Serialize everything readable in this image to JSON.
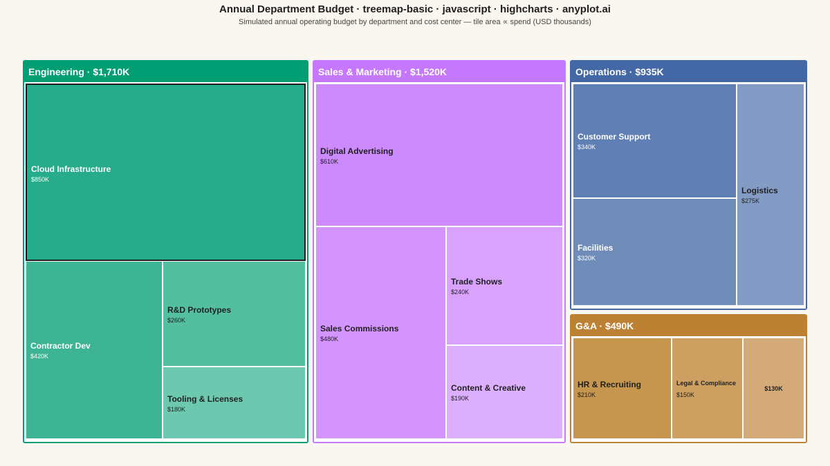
{
  "header": {
    "title": "Annual Department Budget · treemap-basic · javascript · highcharts · anyplot.ai",
    "subtitle": "Simulated annual operating budget by department and cost center — tile area ∝ spend (USD thousands)"
  },
  "chart_data": {
    "type": "treemap",
    "title": "Annual Department Budget · treemap-basic · javascript · highcharts · anyplot.ai",
    "subtitle": "Simulated annual operating budget by department and cost center — tile area ∝ spend (USD thousands)",
    "units": "USD thousands",
    "groups": [
      {
        "name": "Engineering",
        "header": "Engineering · $1,710K",
        "total": 1710,
        "color": "#009e73",
        "children": [
          {
            "name": "Cloud Infrastructure",
            "value": 850,
            "value_label": "$850K",
            "color": "#26ac8a"
          },
          {
            "name": "Contractor Dev",
            "value": 420,
            "value_label": "$420K",
            "color": "#3db595"
          },
          {
            "name": "R&D Prototypes",
            "value": 260,
            "value_label": "$260K",
            "color": "#53bf9f"
          },
          {
            "name": "Tooling & Licenses",
            "value": 180,
            "value_label": "$180K",
            "color": "#6cc8ae"
          }
        ]
      },
      {
        "name": "Sales & Marketing",
        "header": "Sales & Marketing · $1,520K",
        "total": 1520,
        "color": "#c678fd",
        "children": [
          {
            "name": "Digital Advertising",
            "value": 610,
            "value_label": "$610K",
            "color": "#cc8afd"
          },
          {
            "name": "Sales Commissions",
            "value": 480,
            "value_label": "$480K",
            "color": "#d395fd"
          },
          {
            "name": "Trade Shows",
            "value": 240,
            "value_label": "$240K",
            "color": "#d8a2fe"
          },
          {
            "name": "Content & Creative",
            "value": 190,
            "value_label": "$190K",
            "color": "#dcb0fe"
          }
        ]
      },
      {
        "name": "Operations",
        "header": "Operations · $935K",
        "total": 935,
        "color": "#4467a6",
        "children": [
          {
            "name": "Customer Support",
            "value": 340,
            "value_label": "$340K",
            "color": "#5f7fb5"
          },
          {
            "name": "Facilities",
            "value": 320,
            "value_label": "$320K",
            "color": "#708dba"
          },
          {
            "name": "Logistics",
            "value": 275,
            "value_label": "$275K",
            "color": "#839cc5"
          }
        ]
      },
      {
        "name": "G&A",
        "header": "G&A · $490K",
        "total": 490,
        "color": "#bd8134",
        "children": [
          {
            "name": "HR & Recruiting",
            "value": 210,
            "value_label": "$210K",
            "color": "#c6964f"
          },
          {
            "name": "Legal & Compliance",
            "value": 150,
            "value_label": "$150K",
            "color": "#cda061"
          },
          {
            "name": "",
            "value": 130,
            "value_label": "$130K",
            "color": "#d4ab78"
          }
        ]
      }
    ]
  }
}
